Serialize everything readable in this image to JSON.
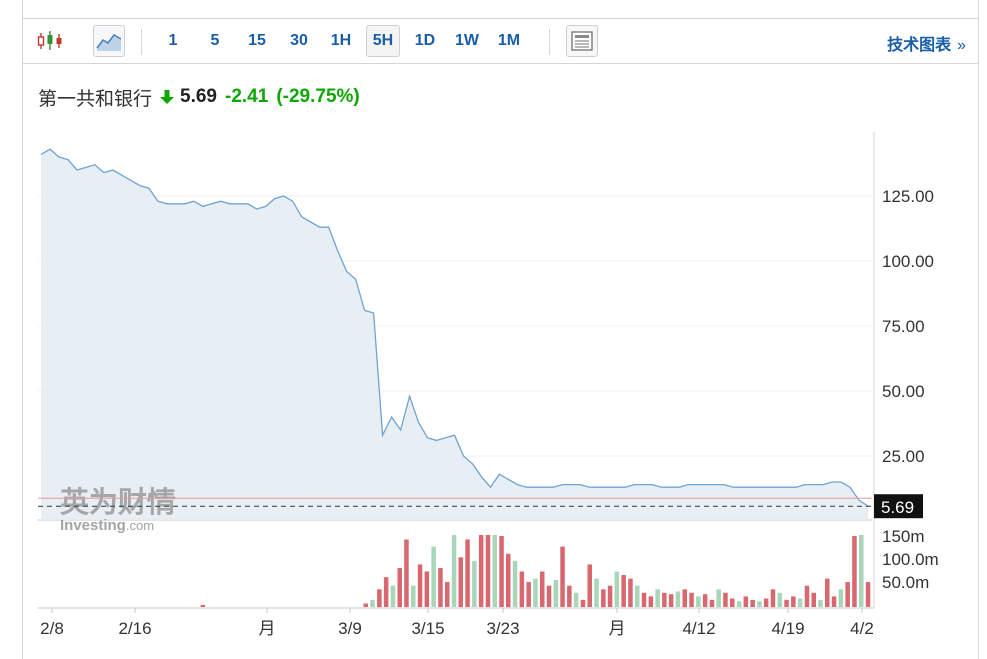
{
  "toolbar": {
    "icons": [
      "candlestick-icon",
      "area-chart-icon",
      "table-view-icon"
    ],
    "intervals": [
      "1",
      "5",
      "15",
      "30",
      "1H",
      "5H",
      "1D",
      "1W",
      "1M"
    ],
    "active_interval": "5H",
    "tech_chart_label": "技术图表",
    "tech_chart_chevron": "»"
  },
  "header": {
    "name": "第一共和银行",
    "price": "5.69",
    "change": "-2.41",
    "change_pct": "(-29.75%)",
    "change_color": "#0ea600",
    "arrow_icon": "down-arrow-icon"
  },
  "watermark": {
    "cn": "英为财情",
    "en": "Investing",
    "suffix": ".com"
  },
  "colors": {
    "line": "#6fa3d2",
    "fill": "#e4ecf3",
    "last_price_line": "#e89a9a",
    "vol_up": "#a9d6b8",
    "vol_down": "#d9676f",
    "badge_bg": "#111111"
  },
  "chart_data": {
    "type": "area",
    "price_axis": {
      "ticks": [
        "125.00",
        "100.00",
        "75.00",
        "50.00",
        "25.00"
      ],
      "ylim": [
        0,
        150
      ]
    },
    "x_labels": [
      "2/8",
      "2/16",
      "月",
      "3/9",
      "3/15",
      "3/23",
      "月",
      "4/12",
      "4/19",
      "4/2"
    ],
    "last_price_badge": "5.69",
    "series": [
      {
        "values": [
          141,
          143,
          140,
          139,
          135,
          136,
          137,
          134,
          135,
          133,
          131,
          129,
          128,
          123,
          122,
          122,
          122,
          123,
          121,
          122,
          123,
          122,
          122,
          122,
          120,
          121,
          124,
          125,
          123,
          117,
          115,
          113,
          113,
          104,
          96,
          93,
          81,
          80,
          33,
          40,
          35,
          48,
          38,
          32,
          31,
          32,
          33,
          25,
          22,
          17,
          13,
          18,
          16,
          14,
          13,
          13,
          13,
          13,
          14,
          14,
          14,
          13,
          13,
          13,
          13,
          13,
          14,
          14,
          14,
          13,
          13,
          13,
          14,
          14,
          14,
          14,
          14,
          13,
          13,
          13,
          13,
          13,
          13,
          13,
          13,
          14,
          14,
          14,
          15,
          15,
          13,
          8,
          5.69
        ]
      }
    ],
    "volume_axis": {
      "ticks": [
        "150m",
        "100.0m",
        "50.0m"
      ],
      "ylim": [
        0,
        180
      ]
    },
    "volume": [
      0,
      0,
      0,
      0,
      0,
      0,
      0,
      0,
      0,
      0,
      0,
      0,
      0,
      0,
      0,
      0,
      0,
      0,
      0,
      0,
      0,
      0,
      0,
      0,
      3,
      0,
      0,
      0,
      0,
      0,
      0,
      0,
      0,
      0,
      0,
      0,
      0,
      0,
      0,
      0,
      0,
      0,
      0,
      0,
      0,
      0,
      0,
      0,
      5,
      10,
      25,
      42,
      30,
      55,
      95,
      30,
      60,
      50,
      85,
      55,
      35,
      120,
      70,
      95,
      65,
      110,
      140,
      140,
      100,
      75,
      65,
      50,
      35,
      40,
      50,
      30,
      38,
      85,
      30,
      20,
      10,
      60,
      40,
      25,
      30,
      50,
      45,
      40,
      30,
      20,
      15,
      25,
      20,
      18,
      22,
      25,
      20,
      15,
      18,
      10,
      25,
      20,
      12,
      8,
      15,
      10,
      8,
      12,
      25,
      20,
      10,
      15,
      12,
      30,
      20,
      10,
      40,
      15,
      25,
      35,
      100,
      160,
      35
    ],
    "volume_colors": "alternating up/down as shown"
  }
}
